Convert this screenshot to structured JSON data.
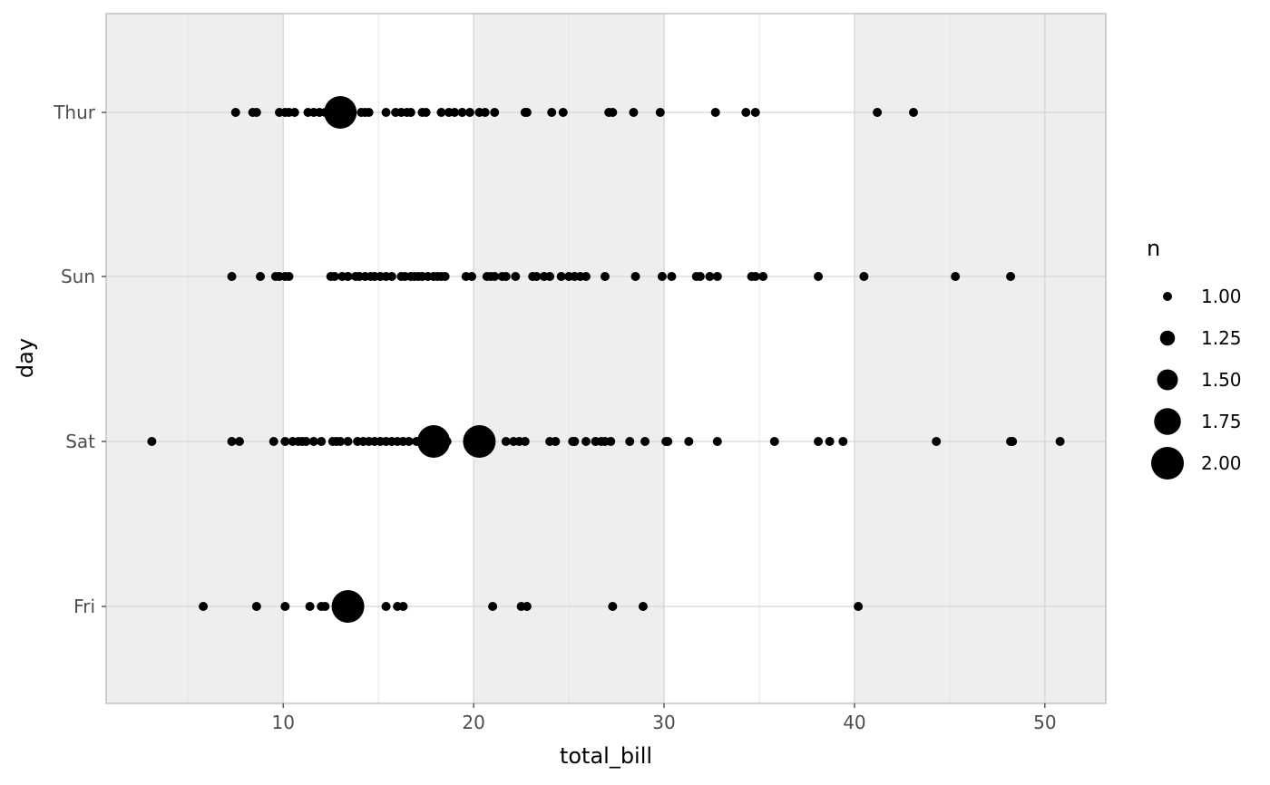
{
  "chart_data": {
    "type": "scatter",
    "title": "",
    "xlabel": "total_bill",
    "ylabel": "day",
    "xlim": [
      0.7,
      53.2
    ],
    "x_ticks": [
      10,
      20,
      30,
      40,
      50
    ],
    "x_tick_labels": [
      "10",
      "20",
      "30",
      "40",
      "50"
    ],
    "categories": [
      "Fri",
      "Sat",
      "Sun",
      "Thur"
    ],
    "grid": true,
    "shaded_bands": [
      [
        0.7,
        10
      ],
      [
        20,
        30
      ],
      [
        40,
        53.2
      ]
    ],
    "legend": {
      "title": "n",
      "position": "right",
      "entries": [
        {
          "label": "1.00",
          "value": 1.0
        },
        {
          "label": "1.25",
          "value": 1.25
        },
        {
          "label": "1.50",
          "value": 1.5
        },
        {
          "label": "1.75",
          "value": 1.75
        },
        {
          "label": "2.00",
          "value": 2.0
        }
      ]
    },
    "series": [
      {
        "category": "Thur",
        "points": [
          {
            "x": 7.5,
            "n": 1
          },
          {
            "x": 8.4,
            "n": 1
          },
          {
            "x": 8.6,
            "n": 1
          },
          {
            "x": 9.8,
            "n": 1
          },
          {
            "x": 10.1,
            "n": 1
          },
          {
            "x": 10.3,
            "n": 1
          },
          {
            "x": 10.6,
            "n": 1
          },
          {
            "x": 11.3,
            "n": 1
          },
          {
            "x": 11.6,
            "n": 1
          },
          {
            "x": 11.9,
            "n": 1
          },
          {
            "x": 12.2,
            "n": 1
          },
          {
            "x": 12.4,
            "n": 1
          },
          {
            "x": 13.0,
            "n": 2
          },
          {
            "x": 14.1,
            "n": 1
          },
          {
            "x": 14.3,
            "n": 1
          },
          {
            "x": 14.5,
            "n": 1
          },
          {
            "x": 15.4,
            "n": 1
          },
          {
            "x": 15.9,
            "n": 1
          },
          {
            "x": 16.2,
            "n": 1
          },
          {
            "x": 16.5,
            "n": 1
          },
          {
            "x": 16.7,
            "n": 1
          },
          {
            "x": 17.3,
            "n": 1
          },
          {
            "x": 17.5,
            "n": 1
          },
          {
            "x": 18.3,
            "n": 1
          },
          {
            "x": 18.7,
            "n": 1
          },
          {
            "x": 19.0,
            "n": 1
          },
          {
            "x": 19.4,
            "n": 1
          },
          {
            "x": 19.8,
            "n": 1
          },
          {
            "x": 20.3,
            "n": 1
          },
          {
            "x": 20.6,
            "n": 1
          },
          {
            "x": 21.1,
            "n": 1
          },
          {
            "x": 22.7,
            "n": 1
          },
          {
            "x": 22.8,
            "n": 1
          },
          {
            "x": 24.1,
            "n": 1
          },
          {
            "x": 24.7,
            "n": 1
          },
          {
            "x": 27.1,
            "n": 1
          },
          {
            "x": 27.3,
            "n": 1
          },
          {
            "x": 28.4,
            "n": 1
          },
          {
            "x": 29.8,
            "n": 1
          },
          {
            "x": 32.7,
            "n": 1
          },
          {
            "x": 34.3,
            "n": 1
          },
          {
            "x": 34.8,
            "n": 1
          },
          {
            "x": 41.2,
            "n": 1
          },
          {
            "x": 43.1,
            "n": 1
          }
        ]
      },
      {
        "category": "Sun",
        "points": [
          {
            "x": 7.3,
            "n": 1
          },
          {
            "x": 8.8,
            "n": 1
          },
          {
            "x": 9.6,
            "n": 1
          },
          {
            "x": 9.8,
            "n": 1
          },
          {
            "x": 10.1,
            "n": 1
          },
          {
            "x": 10.3,
            "n": 1
          },
          {
            "x": 12.5,
            "n": 1
          },
          {
            "x": 12.7,
            "n": 1
          },
          {
            "x": 13.1,
            "n": 1
          },
          {
            "x": 13.4,
            "n": 1
          },
          {
            "x": 13.8,
            "n": 1
          },
          {
            "x": 14.0,
            "n": 1
          },
          {
            "x": 14.3,
            "n": 1
          },
          {
            "x": 14.6,
            "n": 1
          },
          {
            "x": 14.8,
            "n": 1
          },
          {
            "x": 15.1,
            "n": 1
          },
          {
            "x": 15.4,
            "n": 1
          },
          {
            "x": 15.7,
            "n": 1
          },
          {
            "x": 16.2,
            "n": 1
          },
          {
            "x": 16.4,
            "n": 1
          },
          {
            "x": 16.7,
            "n": 1
          },
          {
            "x": 16.9,
            "n": 1
          },
          {
            "x": 17.1,
            "n": 1
          },
          {
            "x": 17.3,
            "n": 1
          },
          {
            "x": 17.6,
            "n": 1
          },
          {
            "x": 17.9,
            "n": 1
          },
          {
            "x": 18.1,
            "n": 1
          },
          {
            "x": 18.3,
            "n": 1
          },
          {
            "x": 18.5,
            "n": 1
          },
          {
            "x": 19.6,
            "n": 1
          },
          {
            "x": 19.9,
            "n": 1
          },
          {
            "x": 20.7,
            "n": 1
          },
          {
            "x": 20.9,
            "n": 1
          },
          {
            "x": 21.1,
            "n": 1
          },
          {
            "x": 21.5,
            "n": 1
          },
          {
            "x": 21.7,
            "n": 1
          },
          {
            "x": 22.2,
            "n": 1
          },
          {
            "x": 23.1,
            "n": 1
          },
          {
            "x": 23.3,
            "n": 1
          },
          {
            "x": 23.7,
            "n": 1
          },
          {
            "x": 24.0,
            "n": 1
          },
          {
            "x": 24.6,
            "n": 1
          },
          {
            "x": 25.0,
            "n": 1
          },
          {
            "x": 25.3,
            "n": 1
          },
          {
            "x": 25.6,
            "n": 1
          },
          {
            "x": 25.9,
            "n": 1
          },
          {
            "x": 26.9,
            "n": 1
          },
          {
            "x": 28.5,
            "n": 1
          },
          {
            "x": 29.9,
            "n": 1
          },
          {
            "x": 30.4,
            "n": 1
          },
          {
            "x": 31.7,
            "n": 1
          },
          {
            "x": 31.9,
            "n": 1
          },
          {
            "x": 32.4,
            "n": 1
          },
          {
            "x": 32.8,
            "n": 1
          },
          {
            "x": 34.6,
            "n": 1
          },
          {
            "x": 34.8,
            "n": 1
          },
          {
            "x": 35.2,
            "n": 1
          },
          {
            "x": 38.1,
            "n": 1
          },
          {
            "x": 40.5,
            "n": 1
          },
          {
            "x": 45.3,
            "n": 1
          },
          {
            "x": 48.2,
            "n": 1
          }
        ]
      },
      {
        "category": "Sat",
        "points": [
          {
            "x": 3.1,
            "n": 1
          },
          {
            "x": 7.3,
            "n": 1
          },
          {
            "x": 7.7,
            "n": 1
          },
          {
            "x": 9.5,
            "n": 1
          },
          {
            "x": 10.1,
            "n": 1
          },
          {
            "x": 10.5,
            "n": 1
          },
          {
            "x": 10.8,
            "n": 1
          },
          {
            "x": 11.0,
            "n": 1
          },
          {
            "x": 11.2,
            "n": 1
          },
          {
            "x": 11.6,
            "n": 1
          },
          {
            "x": 12.0,
            "n": 1
          },
          {
            "x": 12.6,
            "n": 1
          },
          {
            "x": 12.8,
            "n": 1
          },
          {
            "x": 13.0,
            "n": 1
          },
          {
            "x": 13.4,
            "n": 1
          },
          {
            "x": 13.9,
            "n": 1
          },
          {
            "x": 14.2,
            "n": 1
          },
          {
            "x": 14.5,
            "n": 1
          },
          {
            "x": 14.8,
            "n": 1
          },
          {
            "x": 15.1,
            "n": 1
          },
          {
            "x": 15.4,
            "n": 1
          },
          {
            "x": 15.7,
            "n": 1
          },
          {
            "x": 16.0,
            "n": 1
          },
          {
            "x": 16.3,
            "n": 1
          },
          {
            "x": 16.6,
            "n": 1
          },
          {
            "x": 17.0,
            "n": 1
          },
          {
            "x": 17.9,
            "n": 2
          },
          {
            "x": 18.6,
            "n": 1
          },
          {
            "x": 20.3,
            "n": 2
          },
          {
            "x": 21.7,
            "n": 1
          },
          {
            "x": 22.1,
            "n": 1
          },
          {
            "x": 22.4,
            "n": 1
          },
          {
            "x": 22.7,
            "n": 1
          },
          {
            "x": 24.0,
            "n": 1
          },
          {
            "x": 24.3,
            "n": 1
          },
          {
            "x": 25.2,
            "n": 1
          },
          {
            "x": 25.3,
            "n": 1
          },
          {
            "x": 25.9,
            "n": 1
          },
          {
            "x": 26.4,
            "n": 1
          },
          {
            "x": 26.7,
            "n": 1
          },
          {
            "x": 26.9,
            "n": 1
          },
          {
            "x": 27.2,
            "n": 1
          },
          {
            "x": 28.2,
            "n": 1
          },
          {
            "x": 29.0,
            "n": 1
          },
          {
            "x": 30.1,
            "n": 1
          },
          {
            "x": 30.2,
            "n": 1
          },
          {
            "x": 31.3,
            "n": 1
          },
          {
            "x": 32.8,
            "n": 1
          },
          {
            "x": 35.8,
            "n": 1
          },
          {
            "x": 38.1,
            "n": 1
          },
          {
            "x": 38.7,
            "n": 1
          },
          {
            "x": 39.4,
            "n": 1
          },
          {
            "x": 44.3,
            "n": 1
          },
          {
            "x": 48.3,
            "n": 1
          },
          {
            "x": 48.2,
            "n": 1
          },
          {
            "x": 50.8,
            "n": 1
          }
        ]
      },
      {
        "category": "Fri",
        "points": [
          {
            "x": 5.8,
            "n": 1
          },
          {
            "x": 8.6,
            "n": 1
          },
          {
            "x": 10.1,
            "n": 1
          },
          {
            "x": 11.4,
            "n": 1
          },
          {
            "x": 12.0,
            "n": 1
          },
          {
            "x": 12.2,
            "n": 1
          },
          {
            "x": 13.4,
            "n": 2
          },
          {
            "x": 15.4,
            "n": 1
          },
          {
            "x": 16.0,
            "n": 1
          },
          {
            "x": 16.3,
            "n": 1
          },
          {
            "x": 21.0,
            "n": 1
          },
          {
            "x": 22.5,
            "n": 1
          },
          {
            "x": 22.8,
            "n": 1
          },
          {
            "x": 27.3,
            "n": 1
          },
          {
            "x": 28.9,
            "n": 1
          },
          {
            "x": 40.2,
            "n": 1
          }
        ]
      }
    ]
  }
}
